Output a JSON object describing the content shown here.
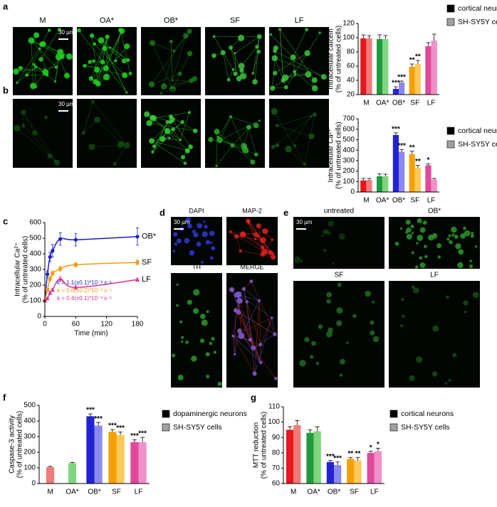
{
  "panel_labels": [
    "a",
    "b",
    "c",
    "d",
    "e",
    "f",
    "g"
  ],
  "micrographs": {
    "a": {
      "labels": [
        "M",
        "OA*",
        "OB*",
        "SF",
        "LF"
      ],
      "scale_bar": "30 µm"
    },
    "b": {
      "labels": [
        "M",
        "OA*",
        "OB*",
        "SF",
        "LF"
      ],
      "scale_bar": "30 µm"
    },
    "d": {
      "labels": [
        "DAPI",
        "MAP-2",
        "TH",
        "MERGE"
      ],
      "scale_bar": "30 µm"
    },
    "e": {
      "labels": [
        "untreated",
        "OB*",
        "SF",
        "LF"
      ],
      "scale_bar": "30 µm"
    }
  },
  "chart_data": [
    {
      "type": "bar",
      "ylabel": [
        "Intracellular calcein",
        "(% of untreated cells)"
      ],
      "categories": [
        "M",
        "OA*",
        "OB*",
        "SF",
        "LF"
      ],
      "ylim": [
        20,
        120
      ],
      "yticks": [
        20,
        40,
        60,
        80,
        100,
        120
      ],
      "series": [
        {
          "name": "cortical neurons",
          "color": "#000000",
          "bar_colors": [
            "#e8161e",
            "#1f9a3c",
            "#2323d6",
            "#f5a000",
            "#e0489a"
          ],
          "values": [
            99,
            98,
            28,
            59,
            88
          ],
          "errors": [
            5,
            6,
            3,
            4,
            5
          ],
          "stars": [
            null,
            null,
            "***",
            "**",
            null
          ]
        },
        {
          "name": "SH-SY5Y cells",
          "color": "#a0a0a0",
          "bar_colors": [
            "#f27a7a",
            "#7fd67f",
            "#8a8aee",
            "#ffc85a",
            "#f08fc8"
          ],
          "values": [
            99,
            98,
            37,
            63,
            96
          ],
          "errors": [
            4,
            5,
            2,
            5,
            9
          ],
          "stars": [
            null,
            null,
            "***",
            "**",
            null
          ]
        }
      ]
    },
    {
      "type": "bar",
      "ylabel": [
        "Intracellular Ca²⁺",
        "(% of untreated cells)"
      ],
      "categories": [
        "M",
        "OA*",
        "OB*",
        "SF",
        "LF"
      ],
      "ylim": [
        0,
        700
      ],
      "yticks": [
        0,
        100,
        200,
        300,
        400,
        500,
        600,
        700
      ],
      "series": [
        {
          "name": "cortical neurons",
          "color": "#000000",
          "bar_colors": [
            "#e8161e",
            "#1f9a3c",
            "#2323d6",
            "#f5a000",
            "#e0489a"
          ],
          "values": [
            110,
            150,
            545,
            360,
            255
          ],
          "errors": [
            20,
            25,
            20,
            30,
            15
          ],
          "stars": [
            null,
            null,
            "***",
            "**",
            "*"
          ]
        },
        {
          "name": "SH-SY5Y cells",
          "color": "#a0a0a0",
          "bar_colors": [
            "#f27a7a",
            "#7fd67f",
            "#8a8aee",
            "#ffc85a",
            "#f08fc8"
          ],
          "values": [
            115,
            150,
            385,
            230,
            120
          ],
          "errors": [
            15,
            20,
            20,
            25,
            10
          ],
          "stars": [
            null,
            null,
            "***",
            "**",
            null
          ]
        }
      ]
    },
    {
      "type": "line",
      "ylabel": [
        "Intracellular Ca²⁺",
        "(% of untreated cells)"
      ],
      "xlabel": "Time (min)",
      "xlim": [
        0,
        180
      ],
      "xticks": [
        0,
        60,
        120,
        180
      ],
      "ylim": [
        0,
        600
      ],
      "yticks": [
        0,
        100,
        200,
        300,
        400,
        500,
        600
      ],
      "series": [
        {
          "name": "OB*",
          "color": "#1c1ccc",
          "marker": "circle",
          "x": [
            0,
            5,
            10,
            15,
            30,
            60,
            180
          ],
          "values": [
            100,
            270,
            380,
            420,
            495,
            490,
            510
          ],
          "errors": [
            0,
            20,
            30,
            40,
            40,
            40,
            55
          ]
        },
        {
          "name": "SF",
          "color": "#f39a10",
          "marker": "square",
          "x": [
            0,
            5,
            10,
            15,
            30,
            60,
            180
          ],
          "values": [
            100,
            170,
            240,
            275,
            305,
            330,
            345
          ],
          "errors": [
            0,
            10,
            15,
            15,
            15,
            15,
            15
          ]
        },
        {
          "name": "LF",
          "color": "#e0308f",
          "marker": "triangle",
          "x": [
            0,
            5,
            10,
            15,
            30,
            60,
            180
          ],
          "values": [
            100,
            115,
            150,
            170,
            240,
            185,
            235
          ],
          "errors": [
            0,
            5,
            10,
            10,
            15,
            10,
            10
          ]
        }
      ],
      "annotations": [
        {
          "text": "k = 1.1(±0.1)*10⁻³ s⁻¹",
          "color": "#1c1ccc"
        },
        {
          "text": "k = 0.6(±0.2)*10⁻³ s⁻¹",
          "color": "#f39a10"
        },
        {
          "text": "k = 0.4(±0.1)*10⁻³ s⁻¹",
          "color": "#e0308f"
        }
      ]
    },
    {
      "type": "bar",
      "ylabel": [
        "Caspase-3 activity",
        "(% of untreated cells)"
      ],
      "categories": [
        "M",
        "OA*",
        "OB*",
        "SF",
        "LF"
      ],
      "ylim": [
        0,
        500
      ],
      "yticks": [
        0,
        100,
        200,
        300,
        400,
        500
      ],
      "series": [
        {
          "name": "dopaminergic neurons",
          "color": "#000000",
          "bar_colors": [
            "#e8161e",
            "#1f9a3c",
            "#2323d6",
            "#f5a000",
            "#e0489a"
          ],
          "values": [
            null,
            null,
            430,
            330,
            265
          ],
          "errors": [
            null,
            null,
            15,
            15,
            15
          ],
          "stars": [
            null,
            null,
            "***",
            "***",
            "***"
          ]
        },
        {
          "name": "SH-SY5Y cells",
          "color": "#a0a0a0",
          "bar_colors": [
            "#f27a7a",
            "#7fd67f",
            "#8a8aee",
            "#ffc85a",
            "#f08fc8"
          ],
          "values": [
            105,
            130,
            370,
            310,
            265
          ],
          "errors": [
            5,
            5,
            20,
            20,
            30
          ],
          "stars": [
            null,
            null,
            "***",
            "***",
            "***"
          ]
        }
      ]
    },
    {
      "type": "bar",
      "ylabel": [
        "MTT reduction",
        "(% of untreated cells)"
      ],
      "categories": [
        "M",
        "OA*",
        "OB*",
        "SF",
        "LF"
      ],
      "ylim": [
        60,
        110
      ],
      "yticks": [
        60,
        70,
        80,
        90,
        100,
        110
      ],
      "series": [
        {
          "name": "cortical neurons",
          "color": "#000000",
          "bar_colors": [
            "#e8161e",
            "#1f9a3c",
            "#2323d6",
            "#f5a000",
            "#e0489a"
          ],
          "values": [
            95,
            93,
            74,
            76,
            80
          ],
          "errors": [
            2,
            2,
            1,
            1,
            1
          ],
          "stars": [
            null,
            null,
            "***",
            "**",
            "*"
          ]
        },
        {
          "name": "SH-SY5Y cells",
          "color": "#a0a0a0",
          "bar_colors": [
            "#f27a7a",
            "#7fd67f",
            "#8a8aee",
            "#ffc85a",
            "#f08fc8"
          ],
          "values": [
            98,
            94,
            72,
            75,
            81
          ],
          "errors": [
            3,
            3,
            2,
            2,
            2
          ],
          "stars": [
            null,
            null,
            "***",
            "**",
            "*"
          ]
        }
      ]
    }
  ]
}
